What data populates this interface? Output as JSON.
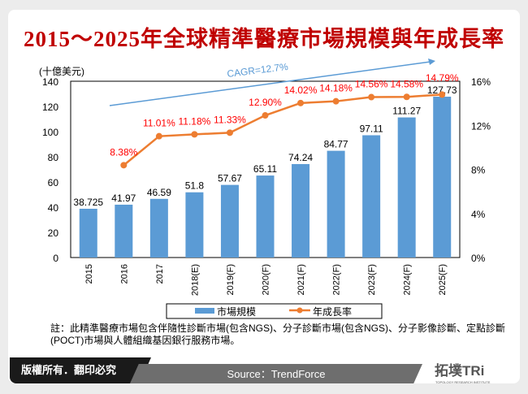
{
  "title": "2015～2025年全球精準醫療市場規模與年成長率",
  "chart_data": {
    "type": "bar+line",
    "title": "2015～2025年全球精準醫療市場規模與年成長率",
    "categories": [
      "2015",
      "2016",
      "2017",
      "2018(E)",
      "2019(F)",
      "2020(F)",
      "2021(F)",
      "2022(F)",
      "2023(F)",
      "2024(F)",
      "2025(F)"
    ],
    "series": [
      {
        "name": "市場規模",
        "type": "bar",
        "axis": "left",
        "values": [
          38.725,
          41.97,
          46.59,
          51.8,
          57.67,
          65.11,
          74.24,
          84.77,
          97.11,
          111.27,
          127.73
        ],
        "labels": [
          "38.725",
          "41.97",
          "46.59",
          "51.8",
          "57.67",
          "65.11",
          "74.24",
          "84.77",
          "97.11",
          "111.27",
          "127.73"
        ],
        "color": "#5b9bd5"
      },
      {
        "name": "年成長率",
        "type": "line",
        "axis": "right",
        "values": [
          null,
          8.38,
          11.01,
          11.18,
          11.33,
          12.9,
          14.02,
          14.18,
          14.56,
          14.58,
          14.79
        ],
        "labels": [
          "",
          "8.38%",
          "11.01%",
          "11.18%",
          "11.33%",
          "12.90%",
          "14.02%",
          "14.18%",
          "14.56%",
          "14.58%",
          "14.79%"
        ],
        "color": "#ed7d31",
        "label_color": "#ff0000"
      }
    ],
    "ylabel": "(十億美元)",
    "ylim": [
      0,
      140
    ],
    "yticks": [
      "0",
      "20",
      "40",
      "60",
      "80",
      "100",
      "120",
      "140"
    ],
    "y2lim": [
      0,
      16
    ],
    "y2ticks": [
      "0%",
      "4%",
      "8%",
      "12%",
      "16%"
    ],
    "annotation": "CAGR=12.7%",
    "legend": "bottom",
    "grid": false
  },
  "note": "註：此精準醫療市場包含伴隨性診斷市場(包含NGS)、分子診斷市場(包含NGS)、分子影像診斷、定點診斷(POCT)市場與人體組織基因銀行服務市場。",
  "footer": {
    "copyright": "版權所有．翻印必究",
    "source": "Source：TrendForce",
    "logo": "拓墣TRi",
    "logo_sub": "TOPOLOGY RESEARCH INSTITUTE"
  }
}
